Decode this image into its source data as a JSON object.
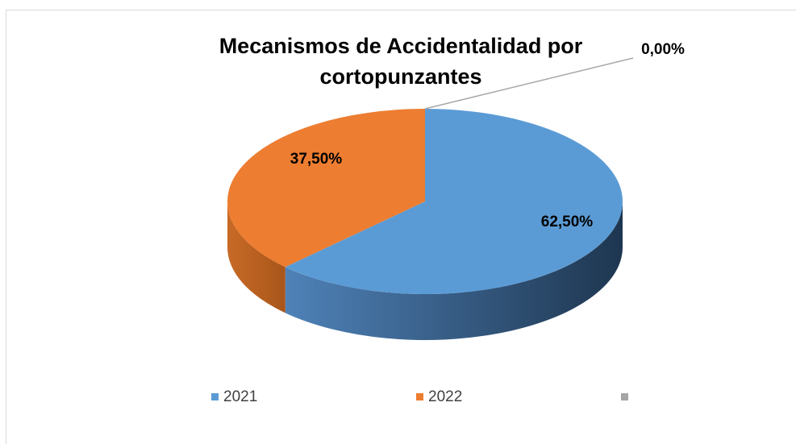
{
  "chart_data": {
    "type": "pie3d",
    "title": "Mecanismos de Accidentalidad por cortopunzantes",
    "categories": [
      "2021",
      "2022",
      null
    ],
    "values": [
      62.5,
      37.5,
      0
    ],
    "value_labels": [
      "62,50%",
      "37,50%",
      "0,00%"
    ],
    "colors": [
      "#5b9bd5",
      "#ed7d31",
      "#a5a5a5"
    ],
    "legend": "bottom"
  }
}
